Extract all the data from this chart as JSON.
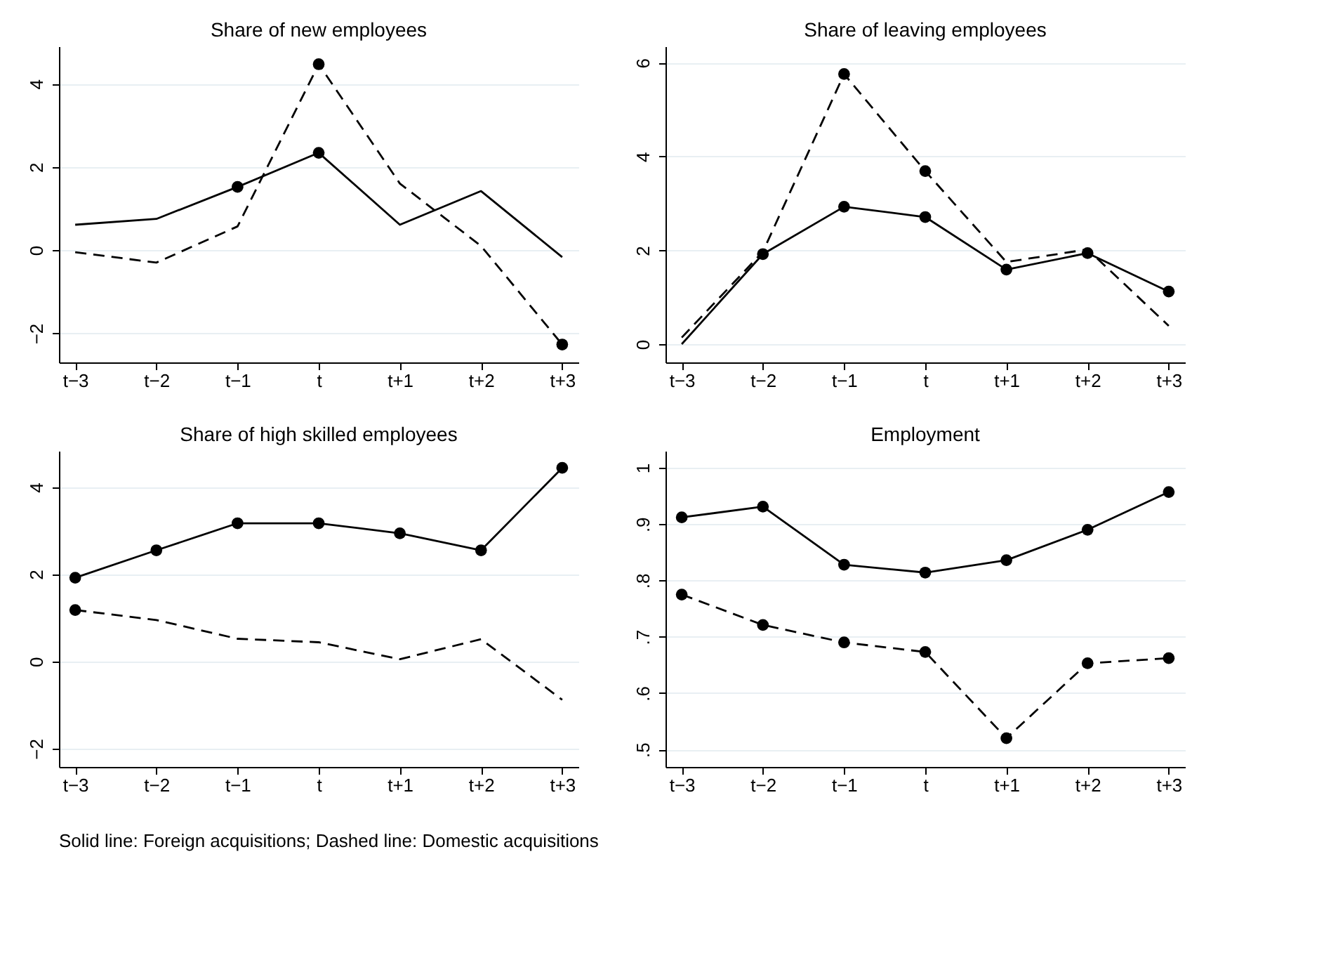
{
  "chart_data": [
    {
      "type": "line",
      "title": "Share of new employees",
      "categories": [
        "t−3",
        "t−2",
        "t−1",
        "t",
        "t+1",
        "t+2",
        "t+3"
      ],
      "ylim": [
        -2.7,
        4.9
      ],
      "yticks": [
        -2,
        0,
        2,
        4
      ],
      "grid": "y",
      "series": [
        {
          "color": "#000000",
          "line_style": "solid",
          "marker": "none",
          "values": [
            0.61,
            0.75,
            1.52,
            2.34,
            0.61,
            1.42,
            -0.17
          ]
        },
        {
          "color": "#000000",
          "line_style": "dashed",
          "marker": "none",
          "values": [
            -0.05,
            -0.3,
            0.57,
            4.47,
            1.6,
            0.1,
            -2.27
          ]
        },
        {
          "type": "scatter",
          "color": "#000000",
          "marker": "circle",
          "values": [
            null,
            null,
            1.52,
            2.34,
            null,
            null,
            null
          ]
        },
        {
          "type": "scatter",
          "color": "#000000",
          "marker": "circle",
          "values": [
            null,
            null,
            null,
            4.47,
            null,
            null,
            -2.27
          ]
        }
      ]
    },
    {
      "type": "line",
      "title": "Share of leaving employees",
      "categories": [
        "t−3",
        "t−2",
        "t−1",
        "t",
        "t+1",
        "t+2",
        "t+3"
      ],
      "ylim": [
        -0.39,
        6.35
      ],
      "yticks": [
        0,
        2,
        4,
        6
      ],
      "grid": "y",
      "series": [
        {
          "color": "#000000",
          "line_style": "solid",
          "marker": "none",
          "values": [
            0.0,
            1.92,
            2.93,
            2.71,
            1.59,
            1.94,
            1.12
          ]
        },
        {
          "color": "#000000",
          "line_style": "dashed",
          "marker": "none",
          "values": [
            0.14,
            1.97,
            5.76,
            3.69,
            1.75,
            2.02,
            0.39
          ]
        },
        {
          "type": "scatter",
          "color": "#000000",
          "marker": "circle",
          "values": [
            null,
            1.92,
            2.93,
            2.71,
            1.59,
            1.94,
            1.12
          ]
        },
        {
          "type": "scatter",
          "color": "#000000",
          "marker": "circle",
          "values": [
            null,
            null,
            5.76,
            3.69,
            null,
            null,
            null
          ]
        }
      ]
    },
    {
      "type": "line",
      "title": "Share of high skilled employees",
      "categories": [
        "t−3",
        "t−2",
        "t−1",
        "t",
        "t+1",
        "t+2",
        "t+3"
      ],
      "ylim": [
        -2.42,
        4.83
      ],
      "yticks": [
        -2,
        0,
        2,
        4
      ],
      "grid": "y",
      "series": [
        {
          "color": "#000000",
          "line_style": "solid",
          "marker": "none",
          "values": [
            1.92,
            2.55,
            3.17,
            3.17,
            2.94,
            2.55,
            4.44
          ]
        },
        {
          "color": "#000000",
          "line_style": "dashed",
          "marker": "none",
          "values": [
            1.18,
            0.95,
            0.52,
            0.44,
            0.05,
            0.51,
            -0.88
          ]
        },
        {
          "type": "scatter",
          "color": "#000000",
          "marker": "circle",
          "values": [
            1.92,
            2.55,
            3.17,
            3.17,
            2.94,
            2.55,
            4.44
          ]
        },
        {
          "type": "scatter",
          "color": "#000000",
          "marker": "circle",
          "values": [
            1.18,
            null,
            null,
            null,
            null,
            null,
            null
          ]
        }
      ]
    },
    {
      "type": "line",
      "title": "Employment",
      "categories": [
        "t−3",
        "t−2",
        "t−1",
        "t",
        "t+1",
        "t+2",
        "t+3"
      ],
      "ylim": [
        0.469,
        1.03
      ],
      "yticks": [
        {
          "value": 0.5,
          "label": ".5"
        },
        {
          "value": 0.6,
          "label": ".6"
        },
        {
          "value": 0.7,
          "label": ".7"
        },
        {
          "value": 0.8,
          "label": ".8"
        },
        {
          "value": 0.9,
          "label": ".9"
        },
        {
          "value": 1,
          "label": "1"
        }
      ],
      "grid": "y",
      "annotations": [
        "Solid line: Foreign acquisitions; Dashed line: Domestic acquisitions"
      ],
      "series": [
        {
          "color": "#000000",
          "line_style": "solid",
          "marker": "none",
          "values": [
            0.912,
            0.931,
            0.828,
            0.814,
            0.836,
            0.89,
            0.957
          ]
        },
        {
          "color": "#000000",
          "line_style": "dashed",
          "marker": "none",
          "values": [
            0.775,
            0.721,
            0.69,
            0.673,
            0.52,
            0.653,
            0.662
          ]
        },
        {
          "type": "scatter",
          "color": "#000000",
          "marker": "circle",
          "values": [
            0.912,
            0.931,
            0.828,
            0.814,
            0.836,
            0.89,
            0.957
          ]
        },
        {
          "type": "scatter",
          "color": "#000000",
          "marker": "circle",
          "values": [
            0.775,
            0.721,
            0.69,
            0.673,
            0.52,
            0.653,
            0.662
          ]
        }
      ]
    }
  ]
}
